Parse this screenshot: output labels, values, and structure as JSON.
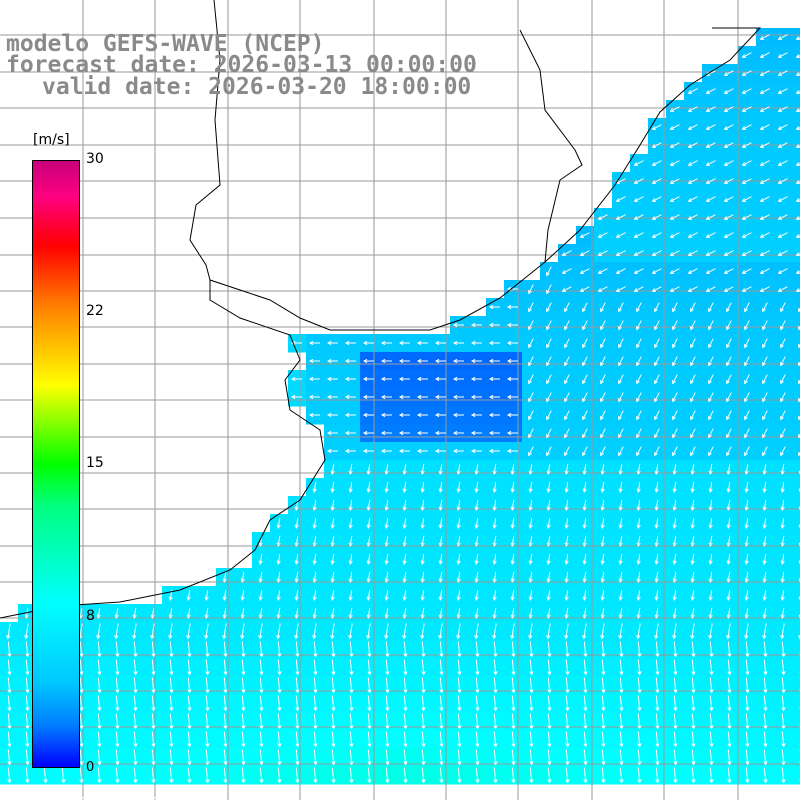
{
  "title": {
    "line1": "modelo GEFS-WAVE (NCEP)",
    "line2": "forecast date: 2026-03-13 00:00:00",
    "line3": "valid date: 2026-03-20 18:00:00"
  },
  "colorbar": {
    "unit": "[m/s]",
    "ticks": [
      "30",
      "22",
      "15",
      "8",
      "0"
    ],
    "range": [
      0,
      30
    ],
    "colors": [
      "#0000ff",
      "#0080ff",
      "#00ffff",
      "#00ff00",
      "#ffff00",
      "#ff8000",
      "#ff0000",
      "#c8007a"
    ]
  },
  "map": {
    "variable": "wind speed and direction",
    "land_color": "#ffffff",
    "coastline_color": "#000000",
    "grid_color": "#9a9a9a",
    "arrow_color": "#ffffff"
  }
}
